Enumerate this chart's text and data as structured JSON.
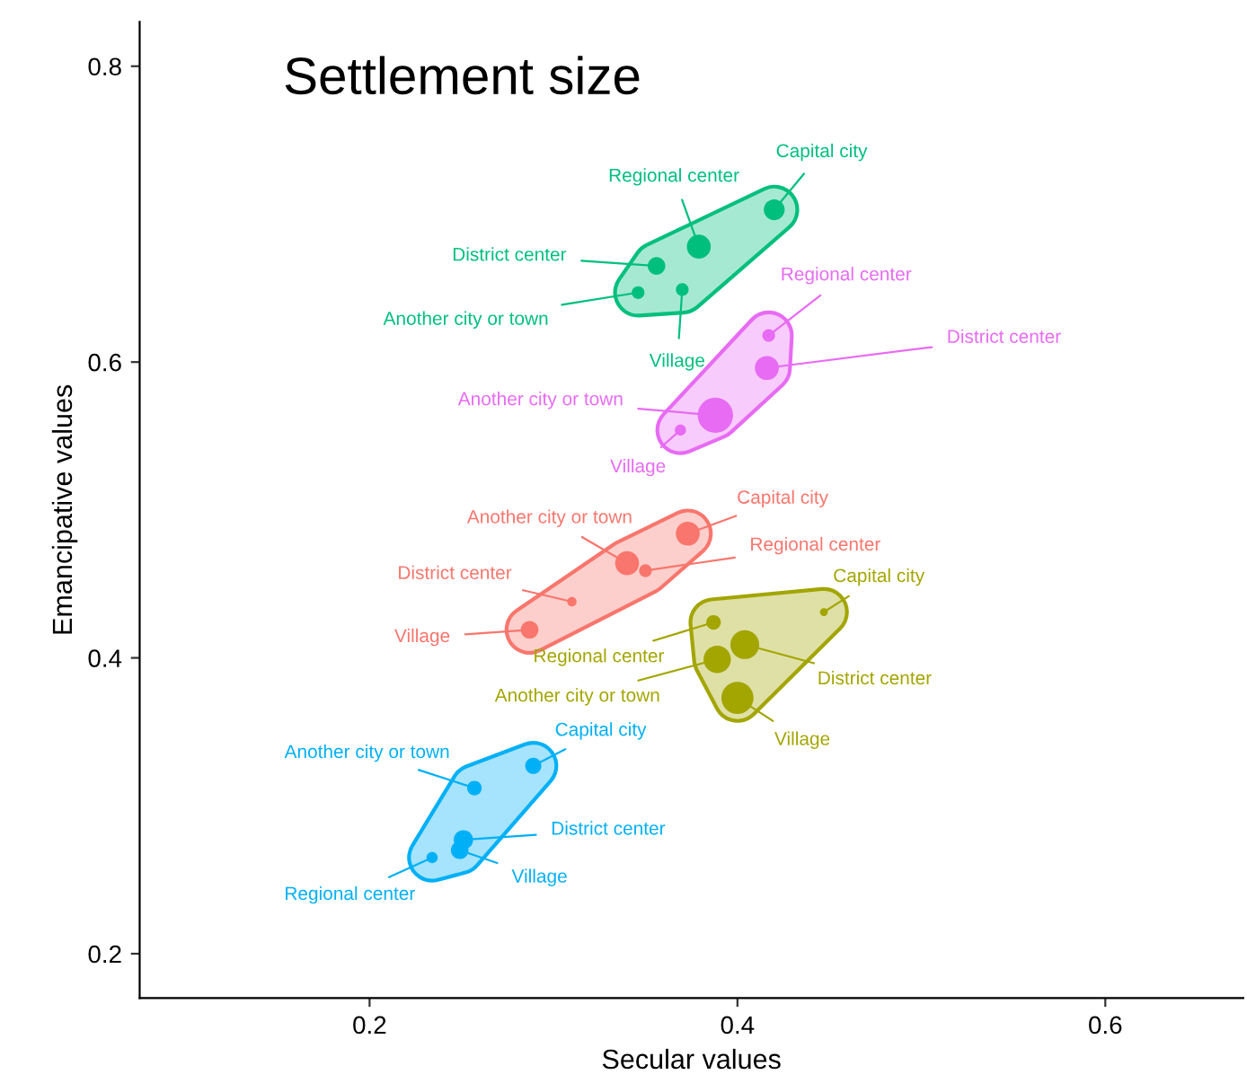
{
  "chart_data": {
    "type": "bubble",
    "title": "Settlement size",
    "xlabel": "Secular values",
    "ylabel": "Emancipative values",
    "xlim": [
      0.075,
      0.675
    ],
    "ylim": [
      0.17,
      0.83
    ],
    "xticks": [
      0.2,
      0.4,
      0.6
    ],
    "yticks": [
      0.2,
      0.4,
      0.6,
      0.8
    ],
    "series": [
      {
        "color": "#f8766d",
        "x": [
          0.373,
          0.34,
          0.35,
          0.31,
          0.287
        ],
        "values": [
          0.484,
          0.464,
          0.459,
          0.438,
          0.419
        ],
        "sizes": [
          0.46,
          0.46,
          0.13,
          0.07,
          0.25
        ],
        "value_labels": [
          "Capital city",
          "Another city or town",
          "Regional center",
          "District center",
          "Village"
        ]
      },
      {
        "color": "#a3a500",
        "x": [
          0.447,
          0.387,
          0.404,
          0.389,
          0.4
        ],
        "values": [
          0.431,
          0.424,
          0.409,
          0.399,
          0.373
        ],
        "sizes": [
          0.05,
          0.17,
          0.67,
          0.6,
          0.83
        ],
        "value_labels": [
          "Capital city",
          "Regional center",
          "District center",
          "Another city or town",
          "Village"
        ]
      },
      {
        "color": "#00bf7d",
        "x": [
          0.42,
          0.379,
          0.356,
          0.346,
          0.37
        ],
        "values": [
          0.703,
          0.678,
          0.665,
          0.647,
          0.649
        ],
        "sizes": [
          0.35,
          0.46,
          0.25,
          0.13,
          0.13
        ],
        "value_labels": [
          "Capital city",
          "Regional center",
          "District center",
          "Another city or town",
          "Village"
        ]
      },
      {
        "color": "#00b0f6",
        "x": [
          0.289,
          0.257,
          0.251,
          0.249,
          0.234
        ],
        "values": [
          0.327,
          0.312,
          0.277,
          0.27,
          0.265
        ],
        "sizes": [
          0.21,
          0.17,
          0.3,
          0.25,
          0.1
        ],
        "value_labels": [
          "Capital city",
          "Another city or town",
          "District center",
          "Village",
          "Regional center"
        ]
      },
      {
        "color": "#e76bf3",
        "x": [
          0.417,
          0.416,
          0.388,
          0.369
        ],
        "values": [
          0.618,
          0.596,
          0.564,
          0.554
        ],
        "sizes": [
          0.13,
          0.46,
          1,
          0.1
        ],
        "value_labels": [
          "Regional center",
          "District center",
          "Another city or town",
          "Village"
        ]
      }
    ]
  }
}
